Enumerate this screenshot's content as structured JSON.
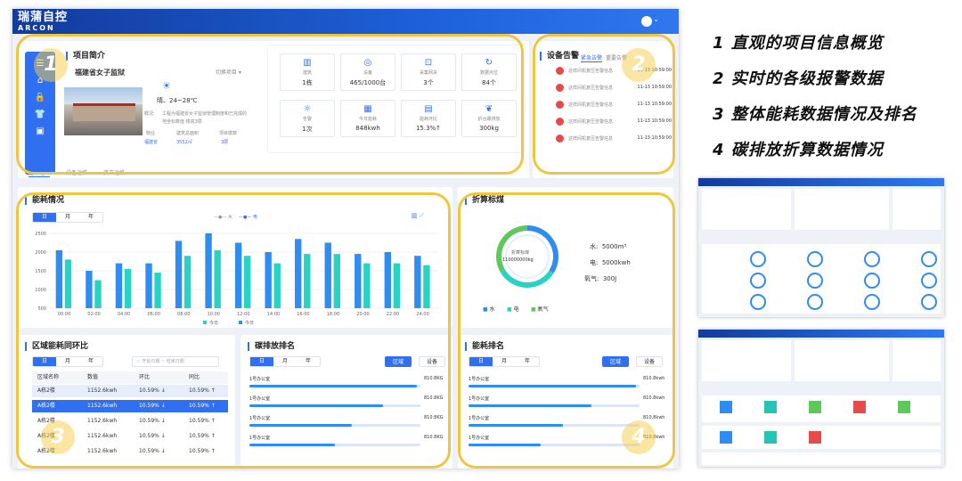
{
  "app": {
    "logo": "瑞蒲自控",
    "logo_en": "ARCON"
  },
  "project": {
    "title": "项目简介",
    "name": "福建省女子监狱",
    "switch": "切换项目",
    "weather": "晴、24~28℃",
    "overview_label": "概况:",
    "overview_text1": "工程为福建省女子监狱管理制度和已完成的",
    "overview_text2": "地坐标数值 楼高3层",
    "col1_label": "物业",
    "col1_value": "福建省",
    "col2_label": "建筑总面积",
    "col2_value": "3552㎡",
    "col3_label": "项目楼数",
    "col3_value": "3层"
  },
  "stats": [
    {
      "icon": "building-icon",
      "label": "建筑",
      "value": "1栋"
    },
    {
      "icon": "device-icon",
      "label": "设备",
      "value": "465/1000台"
    },
    {
      "icon": "gateway-icon",
      "label": "采集网关",
      "value": "3个"
    },
    {
      "icon": "datapoint-icon",
      "label": "数据点位",
      "value": "84个"
    },
    {
      "icon": "alarm-icon",
      "label": "告警",
      "value": "1次"
    },
    {
      "icon": "energy-icon",
      "label": "今日能耗",
      "value": "848kwh"
    },
    {
      "icon": "ratio-icon",
      "label": "能耗环比",
      "value": "15.3%↑"
    },
    {
      "icon": "carbon-icon",
      "label": "折合碳排放",
      "value": "300kg"
    }
  ],
  "alarms": {
    "title": "设备告警",
    "tab_active": "紧急告警",
    "tab2": "重要告警",
    "items": [
      {
        "msg": "这样间机复压告警信息",
        "date": "11-13 10:59:00"
      },
      {
        "msg": "这样间机复压告警信息",
        "date": "11-13 10:59:00"
      },
      {
        "msg": "这样间机复压告警信息",
        "date": "11-13 10:59:00"
      },
      {
        "msg": "这样间机复压告警信息",
        "date": "11-13 10:59:00"
      },
      {
        "msg": "这样间机复压告警信息",
        "date": "11-13 10:59:00"
      }
    ]
  },
  "tabs": [
    "能源运维",
    "设备运维",
    "资产运维"
  ],
  "energy": {
    "title": "能耗情况",
    "periods": [
      "日",
      "月",
      "年"
    ],
    "legend_water": "水",
    "legend_elec": "电",
    "legend_today": "今日",
    "legend_yesterday": "今日"
  },
  "chart_data": {
    "type": "bar",
    "categories": [
      "00:00",
      "02:00",
      "04:00",
      "06:00",
      "08:00",
      "10:00",
      "12:00",
      "14:00",
      "16:00",
      "18:00",
      "20:00",
      "22:00",
      "24:00"
    ],
    "series": [
      {
        "name": "今日",
        "values": [
          2050,
          1500,
          1700,
          1700,
          2300,
          2500,
          2250,
          2000,
          2350,
          2250,
          1950,
          2000,
          1900
        ]
      },
      {
        "name": "今日",
        "values": [
          1800,
          1250,
          1550,
          1450,
          1900,
          2050,
          1900,
          1700,
          1950,
          1950,
          1700,
          1700,
          1650
        ]
      }
    ],
    "ylim": [
      500,
      2500
    ],
    "yticks": [
      500,
      1000,
      1500,
      2000,
      2500
    ]
  },
  "coal": {
    "title": "折算标煤",
    "center_label": "折算标煤",
    "center_value": "110000000kg",
    "water_label": "水:",
    "water_value": "5000m³",
    "elec_label": "电:",
    "elec_value": "5000kwh",
    "gas_label": "氧气:",
    "gas_value": "300J",
    "legend": [
      "水",
      "电",
      "氧气"
    ],
    "shares": [
      0.34,
      0.33,
      0.33
    ]
  },
  "region": {
    "title": "区域能耗同环比",
    "periods": [
      "日",
      "月",
      "年"
    ],
    "date_start": "开始日期",
    "date_end": "结束日期",
    "headers": [
      "区域名称",
      "数值",
      "环比",
      "同比"
    ],
    "rows": [
      {
        "name": "A栋2楼",
        "value": "1152.6kwh",
        "hb": "10.59% ↓",
        "tb": "10.59% ↑"
      },
      {
        "name": "A栋2楼",
        "value": "1152.6kwh",
        "hb": "10.59% ↓",
        "tb": "10.59% ↑"
      },
      {
        "name": "A栋2楼",
        "value": "1152.6kwh",
        "hb": "10.59% ↓",
        "tb": "10.59% ↑"
      },
      {
        "name": "A栋2楼",
        "value": "1152.6kwh",
        "hb": "10.59% ↓",
        "tb": "10.59% ↑"
      },
      {
        "name": "A栋2楼",
        "value": "1152.6kwh",
        "hb": "10.59% ↓",
        "tb": "10.59% ↑"
      }
    ]
  },
  "carbon_rank": {
    "title": "碳排放排名",
    "periods": [
      "日",
      "月",
      "年"
    ],
    "btn_region": "区域",
    "btn_device": "设备",
    "items": [
      {
        "name": "1号办公室",
        "value": "810.8KG",
        "frac": 0.98
      },
      {
        "name": "1号办公室",
        "value": "810.8KG",
        "frac": 0.78
      },
      {
        "name": "1号办公室",
        "value": "810.8KG",
        "frac": 0.6
      },
      {
        "name": "1号办公室",
        "value": "810.8KG",
        "frac": 0.5
      }
    ]
  },
  "energy_rank": {
    "title": "能耗排名",
    "periods": [
      "日",
      "月",
      "年"
    ],
    "btn_region": "区域",
    "btn_device": "设备",
    "items": [
      {
        "name": "1号办公室",
        "value": "810.8kwh",
        "frac": 0.98
      },
      {
        "name": "1号办公室",
        "value": "810.8kwh",
        "frac": 0.72
      },
      {
        "name": "1号办公室",
        "value": "810.8kwh",
        "frac": 0.55
      },
      {
        "name": "1号办公室",
        "value": "810.8kwh",
        "frac": 0.42
      }
    ]
  },
  "markers": [
    "1",
    "2",
    "3",
    "4"
  ],
  "features": [
    "1 直观的项目信息概览",
    "2 实时的各级报警数据",
    "3 整体能耗数据情况及排名",
    "4 碳排放折算数据情况"
  ]
}
